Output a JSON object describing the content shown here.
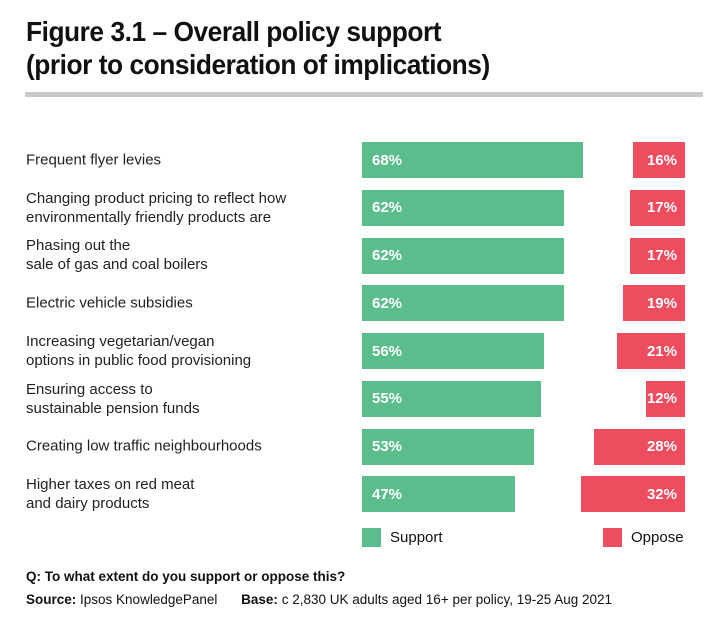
{
  "title": {
    "line1": "Figure 3.1 – Overall policy support",
    "line2": "(prior to consideration of implications)"
  },
  "chart_data": {
    "type": "bar",
    "orientation": "horizontal",
    "value_suffix": "%",
    "xlim": [
      0,
      100
    ],
    "grid": false,
    "legend_position": "bottom",
    "series_names": [
      "Support",
      "Oppose"
    ],
    "rows": [
      {
        "label_lines": [
          "Frequent flyer levies"
        ],
        "support": 68,
        "oppose": 16
      },
      {
        "label_lines": [
          "Changing product pricing to reflect how",
          "environmentally friendly products are"
        ],
        "support": 62,
        "oppose": 17
      },
      {
        "label_lines": [
          "Phasing out the",
          "sale of gas and coal boilers"
        ],
        "support": 62,
        "oppose": 17
      },
      {
        "label_lines": [
          "Electric vehicle subsidies"
        ],
        "support": 62,
        "oppose": 19
      },
      {
        "label_lines": [
          "Increasing vegetarian/vegan",
          "options in public food provisioning"
        ],
        "support": 56,
        "oppose": 21
      },
      {
        "label_lines": [
          "Ensuring access to",
          "sustainable pension funds"
        ],
        "support": 55,
        "oppose": 12
      },
      {
        "label_lines": [
          "Creating low traffic neighbourhoods"
        ],
        "support": 53,
        "oppose": 28
      },
      {
        "label_lines": [
          "Higher taxes on red meat",
          "and dairy products"
        ],
        "support": 47,
        "oppose": 32
      }
    ],
    "legend": [
      {
        "name": "Support",
        "color": "#5bbd8c"
      },
      {
        "name": "Oppose",
        "color": "#ed4d5e"
      }
    ]
  },
  "colors": {
    "support": "#5bbd8c",
    "oppose": "#ed4d5e",
    "divider": "#c8c8c8"
  },
  "footer": {
    "question": "Q: To what extent do you support or oppose this?",
    "source_label": "Source:",
    "source_value": "Ipsos KnowledgePanel",
    "base_label": "Base:",
    "base_value": "c 2,830 UK adults aged 16+ per policy, 19-25 Aug 2021"
  }
}
